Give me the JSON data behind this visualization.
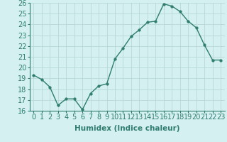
{
  "x": [
    0,
    1,
    2,
    3,
    4,
    5,
    6,
    7,
    8,
    9,
    10,
    11,
    12,
    13,
    14,
    15,
    16,
    17,
    18,
    19,
    20,
    21,
    22,
    23
  ],
  "y": [
    19.3,
    18.9,
    18.2,
    16.5,
    17.1,
    17.1,
    16.1,
    17.6,
    18.3,
    18.5,
    20.8,
    21.8,
    22.9,
    23.5,
    24.2,
    24.3,
    25.9,
    25.7,
    25.2,
    24.3,
    23.7,
    22.1,
    20.7,
    20.7
  ],
  "line_color": "#2e7d6e",
  "marker_color": "#2e7d6e",
  "bg_color": "#d4f0f0",
  "grid_color": "#b8d8d8",
  "xlabel": "Humidex (Indice chaleur)",
  "ylabel": "",
  "ylim": [
    16,
    26
  ],
  "xlim": [
    -0.5,
    23.5
  ],
  "yticks": [
    16,
    17,
    18,
    19,
    20,
    21,
    22,
    23,
    24,
    25,
    26
  ],
  "xticks": [
    0,
    1,
    2,
    3,
    4,
    5,
    6,
    7,
    8,
    9,
    10,
    11,
    12,
    13,
    14,
    15,
    16,
    17,
    18,
    19,
    20,
    21,
    22,
    23
  ],
  "xlabel_fontsize": 7.5,
  "tick_fontsize": 7,
  "line_width": 1.0,
  "marker_size": 2.5
}
